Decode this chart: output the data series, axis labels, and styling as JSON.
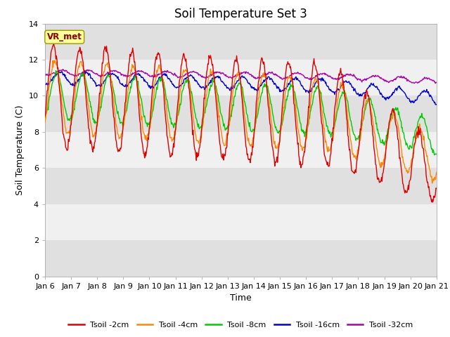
{
  "title": "Soil Temperature Set 3",
  "xlabel": "Time",
  "ylabel": "Soil Temperature (C)",
  "ylim": [
    0,
    14
  ],
  "xlim": [
    0,
    15
  ],
  "yticks": [
    0,
    2,
    4,
    6,
    8,
    10,
    12,
    14
  ],
  "xtick_labels": [
    "Jan 6",
    "Jan 7",
    "Jan 8",
    "Jan 9",
    "Jan 10",
    "Jan 11",
    "Jan 12",
    "Jan 13",
    "Jan 14",
    "Jan 15",
    "Jan 16",
    "Jan 17",
    "Jan 18",
    "Jan 19",
    "Jan 20",
    "Jan 21"
  ],
  "series_colors": [
    "#dd0000",
    "#ff8800",
    "#00cc00",
    "#0000cc",
    "#aa00aa"
  ],
  "series_labels": [
    "Tsoil -2cm",
    "Tsoil -4cm",
    "Tsoil -8cm",
    "Tsoil -16cm",
    "Tsoil -32cm"
  ],
  "vr_met_label": "VR_met",
  "background_color": "#ffffff",
  "plot_bg_light": "#f0f0f0",
  "plot_bg_dark": "#e0e0e0",
  "title_fontsize": 12,
  "axis_label_fontsize": 9,
  "tick_fontsize": 8
}
